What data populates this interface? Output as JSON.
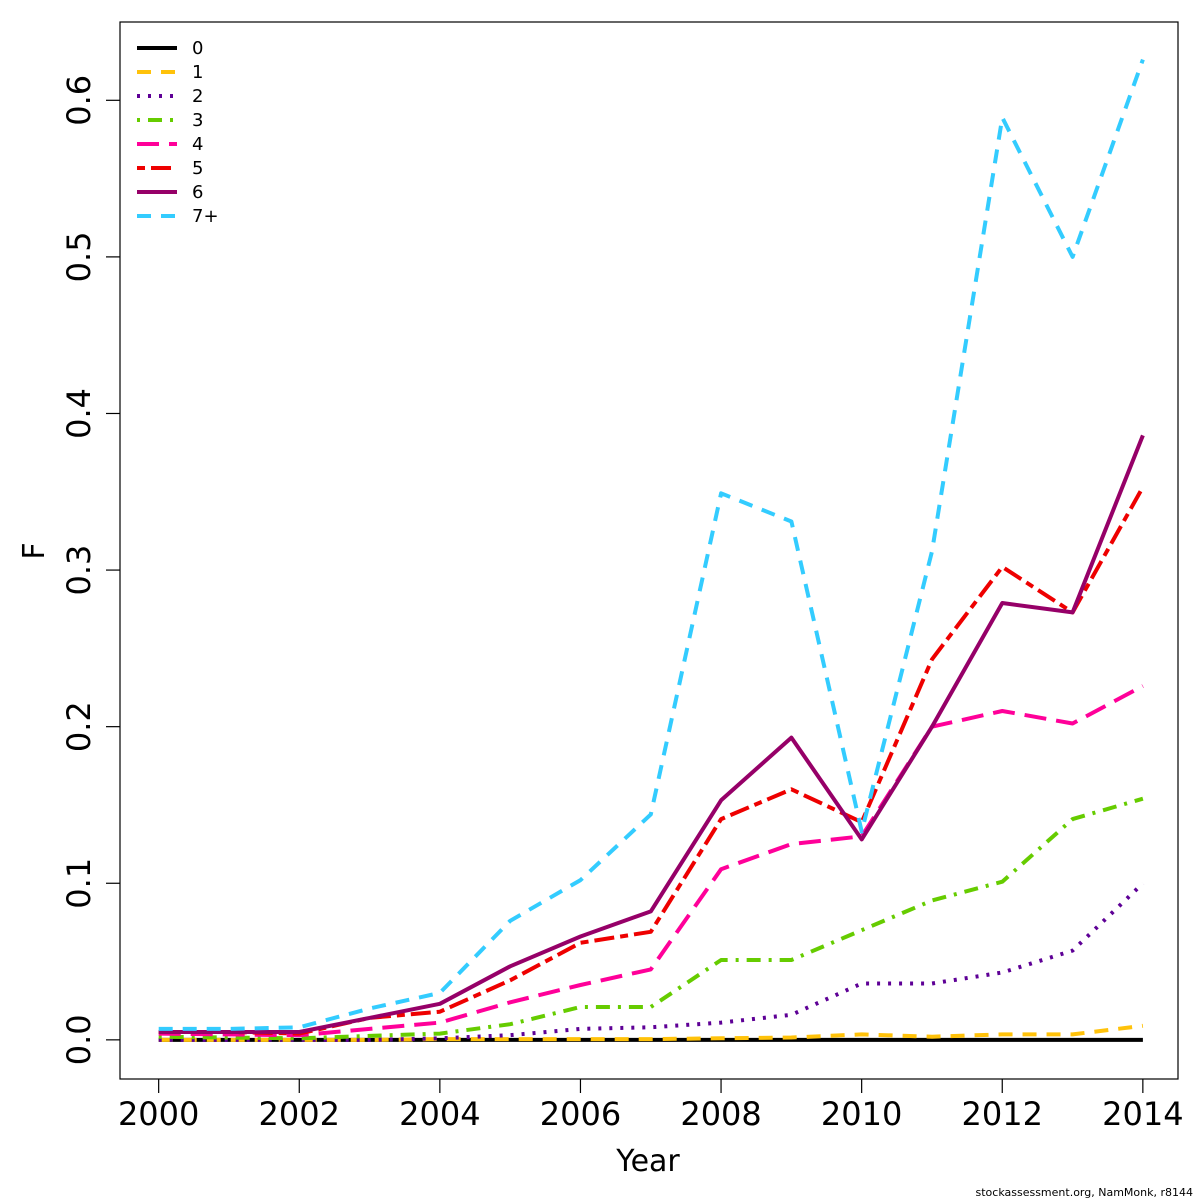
{
  "chart_data": {
    "type": "line",
    "xlabel": "Year",
    "ylabel": "F",
    "xlim": [
      1999.45,
      2014.5
    ],
    "ylim": [
      -0.025,
      0.65
    ],
    "x_ticks": [
      2000,
      2002,
      2004,
      2006,
      2008,
      2010,
      2012,
      2014
    ],
    "x_tick_labels": [
      "2000",
      "2002",
      "2004",
      "2006",
      "2008",
      "2010",
      "2012",
      "2014"
    ],
    "y_ticks": [
      0.0,
      0.1,
      0.2,
      0.3,
      0.4,
      0.5,
      0.6
    ],
    "y_tick_labels": [
      "0.0",
      "0.1",
      "0.2",
      "0.3",
      "0.4",
      "0.5",
      "0.6"
    ],
    "grid": false,
    "legend_position": "top-left",
    "x": [
      2000,
      2001,
      2002,
      2003,
      2004,
      2005,
      2006,
      2007,
      2008,
      2009,
      2010,
      2011,
      2012,
      2013,
      2014
    ],
    "series": [
      {
        "name": "0",
        "color": "#000000",
        "dash": "solid",
        "values": [
          0.0,
          0.0,
          0.0,
          0.0,
          0.0,
          0.0,
          0.0,
          0.0,
          0.0,
          0.0,
          0.0,
          0.0,
          0.0,
          0.0,
          0.0
        ]
      },
      {
        "name": "1",
        "color": "#FFC20A",
        "dash": "dashed",
        "values": [
          0.0,
          0.0,
          0.0,
          0.0,
          0.0005,
          0.0005,
          0.0005,
          0.0005,
          0.001,
          0.0015,
          0.0035,
          0.002,
          0.0035,
          0.0035,
          0.009
        ]
      },
      {
        "name": "2",
        "color": "#5E0096",
        "dash": "dotted",
        "values": [
          0.0,
          0.0,
          0.0,
          0.0,
          0.001,
          0.003,
          0.007,
          0.008,
          0.011,
          0.016,
          0.036,
          0.036,
          0.043,
          0.057,
          0.1
        ]
      },
      {
        "name": "3",
        "color": "#66CC00",
        "dash": "dotdash",
        "values": [
          0.002,
          0.0015,
          0.001,
          0.0025,
          0.004,
          0.01,
          0.021,
          0.021,
          0.051,
          0.051,
          0.07,
          0.089,
          0.101,
          0.141,
          0.154
        ]
      },
      {
        "name": "4",
        "color": "#FF0099",
        "dash": "longdash",
        "values": [
          0.004,
          0.0035,
          0.003,
          0.007,
          0.011,
          0.024,
          0.035,
          0.045,
          0.109,
          0.125,
          0.13,
          0.2,
          0.21,
          0.202,
          0.226
        ]
      },
      {
        "name": "5",
        "color": "#EE0000",
        "dash": "twodash",
        "values": [
          0.005,
          0.005,
          0.004,
          0.014,
          0.018,
          0.038,
          0.062,
          0.069,
          0.141,
          0.16,
          0.139,
          0.243,
          0.302,
          0.273,
          0.353
        ]
      },
      {
        "name": "6",
        "color": "#960068",
        "dash": "solid",
        "values": [
          0.005,
          0.005,
          0.005,
          0.014,
          0.023,
          0.047,
          0.066,
          0.082,
          0.153,
          0.193,
          0.128,
          0.2,
          0.279,
          0.273,
          0.386
        ]
      },
      {
        "name": "7+",
        "color": "#33CCFF",
        "dash": "dashed",
        "values": [
          0.007,
          0.007,
          0.008,
          0.02,
          0.03,
          0.076,
          0.102,
          0.144,
          0.349,
          0.331,
          0.133,
          0.312,
          0.589,
          0.5,
          0.626
        ]
      }
    ]
  },
  "credit": "stockassessment.org, NamMonk, r8144"
}
